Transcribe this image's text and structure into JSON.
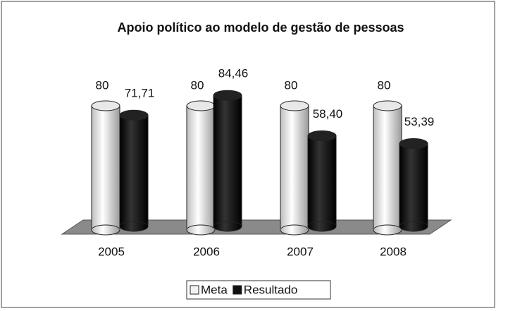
{
  "chart_data": {
    "type": "bar3d",
    "title": "Apoio político ao modelo de gestão de pessoas",
    "categories": [
      "2005",
      "2006",
      "2007",
      "2008"
    ],
    "series": [
      {
        "name": "Meta",
        "color": "#f2f2f2",
        "values": [
          80,
          80,
          80,
          80
        ]
      },
      {
        "name": "Resultado",
        "color": "#111111",
        "values": [
          71.71,
          84.46,
          58.4,
          53.39
        ],
        "value_labels": [
          "71,71",
          "84,46",
          "58,40",
          "53,39"
        ]
      }
    ],
    "legend": "bottom"
  }
}
